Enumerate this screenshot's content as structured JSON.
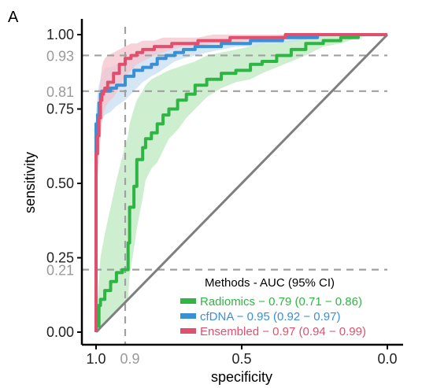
{
  "panel_label": "A",
  "chart_data": {
    "type": "line",
    "title": "",
    "xlabel": "specificity",
    "ylabel": "sensitivity",
    "x_axis_reversed": true,
    "xlim": [
      1.0,
      0.0
    ],
    "ylim": [
      0.0,
      1.0
    ],
    "x_ticks": [
      {
        "value": 1.0,
        "label": "1.0"
      },
      {
        "value": 0.5,
        "label": "0.5"
      },
      {
        "value": 0.0,
        "label": "0.0"
      }
    ],
    "y_ticks": [
      {
        "value": 0.0,
        "label": "0.00"
      },
      {
        "value": 0.25,
        "label": "0.25"
      },
      {
        "value": 0.5,
        "label": "0.50"
      },
      {
        "value": 0.75,
        "label": "0.75"
      },
      {
        "value": 1.0,
        "label": "1.00"
      }
    ],
    "reference_lines": {
      "x": [
        {
          "value": 0.9,
          "label": "0.9"
        }
      ],
      "y": [
        {
          "value": 0.93,
          "label": "0.93"
        },
        {
          "value": 0.81,
          "label": "0.81"
        },
        {
          "value": 0.21,
          "label": "0.21"
        }
      ]
    },
    "diagonal": true,
    "grid": false,
    "legend": {
      "title": "Methods - AUC  (95% CI)",
      "position": "bottom-right"
    },
    "series": [
      {
        "name": "Radiomics − 0.79 (0.71 − 0.86)",
        "color": "#2fb544",
        "band_color": "#bde8c0",
        "x": [
          1.0,
          0.99,
          0.985,
          0.97,
          0.95,
          0.93,
          0.91,
          0.9,
          0.89,
          0.885,
          0.87,
          0.86,
          0.84,
          0.83,
          0.81,
          0.79,
          0.77,
          0.75,
          0.72,
          0.69,
          0.66,
          0.62,
          0.57,
          0.52,
          0.47,
          0.43,
          0.38,
          0.33,
          0.28,
          0.22,
          0.16,
          0.1,
          0.04,
          0.0
        ],
        "y": [
          0.0,
          0.02,
          0.09,
          0.11,
          0.14,
          0.17,
          0.2,
          0.21,
          0.21,
          0.3,
          0.42,
          0.49,
          0.58,
          0.62,
          0.65,
          0.67,
          0.7,
          0.73,
          0.75,
          0.78,
          0.8,
          0.83,
          0.85,
          0.87,
          0.88,
          0.9,
          0.91,
          0.93,
          0.95,
          0.97,
          0.98,
          0.99,
          1.0,
          1.0
        ],
        "ci_lower": [
          0.0,
          0.0,
          0.01,
          0.03,
          0.05,
          0.07,
          0.09,
          0.1,
          0.11,
          0.19,
          0.28,
          0.35,
          0.45,
          0.51,
          0.55,
          0.57,
          0.61,
          0.65,
          0.68,
          0.72,
          0.75,
          0.79,
          0.82,
          0.84,
          0.85,
          0.87,
          0.89,
          0.91,
          0.93,
          0.96,
          0.97,
          0.99,
          1.0,
          1.0
        ],
        "ci_upper": [
          0.06,
          0.17,
          0.25,
          0.33,
          0.42,
          0.51,
          0.59,
          0.63,
          0.66,
          0.7,
          0.75,
          0.78,
          0.81,
          0.83,
          0.85,
          0.86,
          0.87,
          0.88,
          0.89,
          0.9,
          0.91,
          0.93,
          0.94,
          0.95,
          0.96,
          0.97,
          0.97,
          0.98,
          0.99,
          1.0,
          1.0,
          1.0,
          1.0,
          1.0
        ]
      },
      {
        "name": "cfDNA − 0.95 (0.92 − 0.97)",
        "color": "#3b8fd4",
        "band_color": "#c7def2",
        "x": [
          1.0,
          1.0,
          0.995,
          0.99,
          0.985,
          0.98,
          0.97,
          0.95,
          0.93,
          0.9,
          0.87,
          0.84,
          0.81,
          0.79,
          0.76,
          0.73,
          0.7,
          0.66,
          0.62,
          0.57,
          0.52,
          0.47,
          0.42,
          0.36,
          0.3,
          0.24,
          0.17,
          0.1,
          0.04,
          0.0
        ],
        "y": [
          0.0,
          0.6,
          0.7,
          0.73,
          0.77,
          0.8,
          0.81,
          0.81,
          0.82,
          0.83,
          0.86,
          0.88,
          0.89,
          0.9,
          0.92,
          0.93,
          0.94,
          0.95,
          0.96,
          0.96,
          0.97,
          0.97,
          0.98,
          0.98,
          0.99,
          0.99,
          1.0,
          1.0,
          1.0,
          1.0
        ],
        "ci_lower": [
          0.0,
          0.5,
          0.6,
          0.64,
          0.68,
          0.71,
          0.73,
          0.74,
          0.76,
          0.78,
          0.81,
          0.84,
          0.86,
          0.87,
          0.89,
          0.91,
          0.92,
          0.93,
          0.94,
          0.95,
          0.96,
          0.96,
          0.97,
          0.97,
          0.98,
          0.99,
          1.0,
          1.0,
          1.0,
          1.0
        ],
        "ci_upper": [
          0.0,
          0.74,
          0.8,
          0.83,
          0.85,
          0.87,
          0.89,
          0.89,
          0.9,
          0.91,
          0.93,
          0.94,
          0.95,
          0.95,
          0.96,
          0.97,
          0.97,
          0.98,
          0.98,
          0.98,
          0.99,
          0.99,
          0.99,
          1.0,
          1.0,
          1.0,
          1.0,
          1.0,
          1.0,
          1.0
        ]
      },
      {
        "name": "Ensembled − 0.97 (0.94 − 0.99)",
        "color": "#e0506e",
        "band_color": "#f4c3cc",
        "x": [
          1.0,
          1.0,
          0.995,
          0.99,
          0.985,
          0.98,
          0.975,
          0.97,
          0.96,
          0.94,
          0.92,
          0.9,
          0.88,
          0.86,
          0.84,
          0.82,
          0.8,
          0.77,
          0.74,
          0.7,
          0.65,
          0.6,
          0.54,
          0.48,
          0.42,
          0.35,
          0.28,
          0.2,
          0.12,
          0.05,
          0.0
        ],
        "y": [
          0.0,
          0.58,
          0.6,
          0.66,
          0.72,
          0.78,
          0.8,
          0.81,
          0.82,
          0.84,
          0.87,
          0.9,
          0.92,
          0.93,
          0.94,
          0.95,
          0.95,
          0.96,
          0.96,
          0.97,
          0.97,
          0.98,
          0.98,
          0.99,
          0.99,
          0.99,
          1.0,
          1.0,
          1.0,
          1.0,
          1.0
        ],
        "ci_lower": [
          0.0,
          0.48,
          0.52,
          0.58,
          0.64,
          0.7,
          0.73,
          0.75,
          0.77,
          0.79,
          0.82,
          0.86,
          0.88,
          0.9,
          0.91,
          0.92,
          0.93,
          0.94,
          0.95,
          0.96,
          0.96,
          0.97,
          0.97,
          0.98,
          0.98,
          0.99,
          0.99,
          1.0,
          1.0,
          1.0,
          1.0
        ],
        "ci_upper": [
          0.0,
          0.7,
          0.75,
          0.8,
          0.85,
          0.89,
          0.91,
          0.92,
          0.93,
          0.94,
          0.95,
          0.96,
          0.97,
          0.97,
          0.98,
          0.98,
          0.98,
          0.99,
          0.99,
          0.99,
          0.99,
          1.0,
          1.0,
          1.0,
          1.0,
          1.0,
          1.0,
          1.0,
          1.0,
          1.0,
          1.0
        ]
      }
    ]
  }
}
